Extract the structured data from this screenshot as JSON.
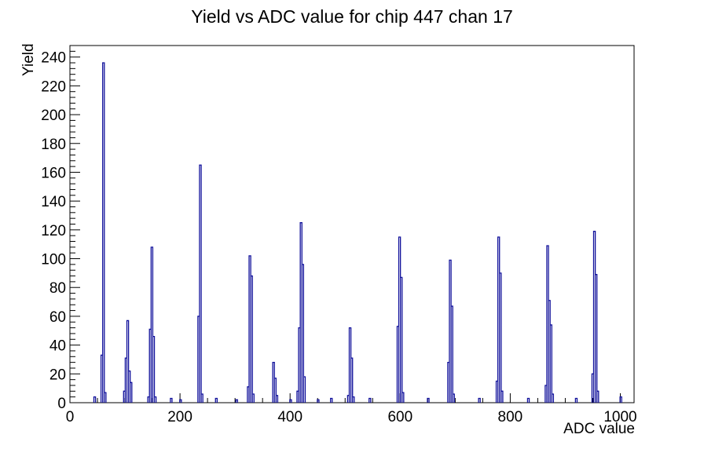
{
  "chart_data": {
    "type": "bar",
    "subtype": "root-histogram",
    "title": "Yield vs ADC value for chip 447 chan 17",
    "xlabel": "ADC value",
    "ylabel": "Yield",
    "xlim": [
      0,
      1025
    ],
    "ylim": [
      0,
      248
    ],
    "x_major_ticks": [
      0,
      200,
      400,
      600,
      800,
      1000
    ],
    "x_minor_step": 50,
    "y_major_ticks": [
      0,
      20,
      40,
      60,
      80,
      100,
      120,
      140,
      160,
      180,
      200,
      220,
      240
    ],
    "y_minor_step": 4,
    "grid": false,
    "legend": false,
    "line_color": "#11119b",
    "axis_color": "#000000",
    "background_color": "#ffffff",
    "bin_width": 3,
    "bins": [
      {
        "x": 45,
        "y": 4
      },
      {
        "x": 58,
        "y": 33
      },
      {
        "x": 61,
        "y": 236
      },
      {
        "x": 64,
        "y": 7
      },
      {
        "x": 99,
        "y": 8
      },
      {
        "x": 102,
        "y": 31
      },
      {
        "x": 105,
        "y": 57
      },
      {
        "x": 108,
        "y": 22
      },
      {
        "x": 111,
        "y": 14
      },
      {
        "x": 143,
        "y": 4
      },
      {
        "x": 146,
        "y": 51
      },
      {
        "x": 149,
        "y": 108
      },
      {
        "x": 152,
        "y": 46
      },
      {
        "x": 155,
        "y": 4
      },
      {
        "x": 184,
        "y": 3
      },
      {
        "x": 201,
        "y": 2
      },
      {
        "x": 234,
        "y": 60
      },
      {
        "x": 237,
        "y": 165
      },
      {
        "x": 240,
        "y": 6
      },
      {
        "x": 266,
        "y": 3
      },
      {
        "x": 303,
        "y": 2
      },
      {
        "x": 324,
        "y": 11
      },
      {
        "x": 327,
        "y": 102
      },
      {
        "x": 330,
        "y": 88
      },
      {
        "x": 333,
        "y": 6
      },
      {
        "x": 370,
        "y": 28
      },
      {
        "x": 373,
        "y": 17
      },
      {
        "x": 376,
        "y": 5
      },
      {
        "x": 401,
        "y": 2
      },
      {
        "x": 414,
        "y": 8
      },
      {
        "x": 417,
        "y": 52
      },
      {
        "x": 420,
        "y": 125
      },
      {
        "x": 423,
        "y": 96
      },
      {
        "x": 426,
        "y": 18
      },
      {
        "x": 451,
        "y": 2
      },
      {
        "x": 475,
        "y": 3
      },
      {
        "x": 506,
        "y": 5
      },
      {
        "x": 509,
        "y": 52
      },
      {
        "x": 512,
        "y": 31
      },
      {
        "x": 515,
        "y": 4
      },
      {
        "x": 545,
        "y": 3
      },
      {
        "x": 596,
        "y": 53
      },
      {
        "x": 599,
        "y": 115
      },
      {
        "x": 602,
        "y": 87
      },
      {
        "x": 605,
        "y": 7
      },
      {
        "x": 651,
        "y": 3
      },
      {
        "x": 688,
        "y": 28
      },
      {
        "x": 691,
        "y": 99
      },
      {
        "x": 694,
        "y": 67
      },
      {
        "x": 697,
        "y": 6
      },
      {
        "x": 744,
        "y": 3
      },
      {
        "x": 776,
        "y": 15
      },
      {
        "x": 779,
        "y": 115
      },
      {
        "x": 782,
        "y": 90
      },
      {
        "x": 785,
        "y": 8
      },
      {
        "x": 833,
        "y": 3
      },
      {
        "x": 865,
        "y": 12
      },
      {
        "x": 868,
        "y": 109
      },
      {
        "x": 871,
        "y": 71
      },
      {
        "x": 874,
        "y": 54
      },
      {
        "x": 877,
        "y": 6
      },
      {
        "x": 920,
        "y": 3
      },
      {
        "x": 950,
        "y": 20
      },
      {
        "x": 953,
        "y": 119
      },
      {
        "x": 956,
        "y": 89
      },
      {
        "x": 959,
        "y": 8
      },
      {
        "x": 1001,
        "y": 4
      }
    ]
  }
}
